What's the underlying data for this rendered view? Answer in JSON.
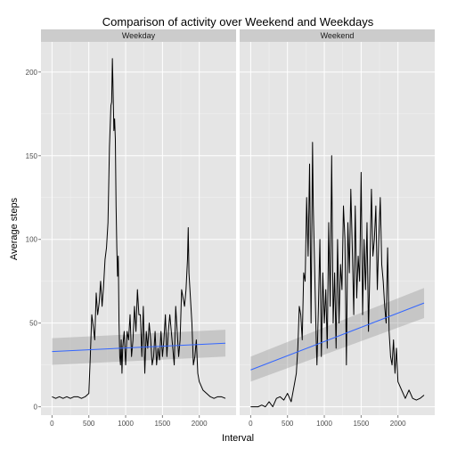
{
  "chart_data": {
    "type": "line",
    "title": "Comparison of activity over Weekend and Weekdays",
    "xlabel": "Interval",
    "ylabel": "Average steps",
    "xlim": [
      -150,
      2500
    ],
    "ylim": [
      -5,
      218
    ],
    "x_ticks": [
      0,
      500,
      1000,
      1500,
      2000
    ],
    "y_ticks": [
      0,
      50,
      100,
      150,
      200
    ],
    "grid": true,
    "facets": [
      {
        "name": "Weekday",
        "series": [
          {
            "x": [
              0,
              50,
              100,
              150,
              200,
              250,
              300,
              350,
              400,
              450,
              500,
              520,
              540,
              560,
              580,
              600,
              620,
              640,
              660,
              680,
              700,
              720,
              740,
              760,
              780,
              800,
              810,
              820,
              830,
              840,
              850,
              860,
              870,
              880,
              890,
              900,
              910,
              920,
              930,
              940,
              950,
              960,
              980,
              1000,
              1020,
              1040,
              1060,
              1080,
              1100,
              1120,
              1140,
              1160,
              1180,
              1200,
              1220,
              1240,
              1260,
              1280,
              1300,
              1320,
              1340,
              1360,
              1380,
              1400,
              1420,
              1440,
              1460,
              1480,
              1500,
              1520,
              1540,
              1560,
              1580,
              1600,
              1620,
              1640,
              1660,
              1680,
              1700,
              1720,
              1740,
              1760,
              1780,
              1800,
              1820,
              1840,
              1850,
              1860,
              1880,
              1900,
              1920,
              1940,
              1960,
              1980,
              2000,
              2050,
              2100,
              2150,
              2200,
              2250,
              2300,
              2355
            ],
            "y": [
              6,
              5,
              6,
              5,
              6,
              5,
              6,
              6,
              5,
              6,
              8,
              30,
              55,
              48,
              40,
              68,
              55,
              62,
              75,
              60,
              72,
              88,
              95,
              110,
              155,
              180,
              182,
              208,
              188,
              165,
              172,
              160,
              120,
              95,
              78,
              90,
              50,
              30,
              25,
              40,
              20,
              35,
              45,
              25,
              45,
              40,
              55,
              30,
              40,
              60,
              45,
              70,
              55,
              55,
              30,
              60,
              20,
              45,
              35,
              50,
              40,
              25,
              30,
              45,
              25,
              35,
              28,
              45,
              30,
              40,
              55,
              30,
              45,
              55,
              45,
              35,
              25,
              60,
              45,
              30,
              40,
              70,
              65,
              60,
              70,
              88,
              107,
              80,
              65,
              50,
              25,
              30,
              40,
              20,
              15,
              10,
              8,
              6,
              5,
              6,
              6,
              5
            ],
            "color": "#000000"
          },
          {
            "x": [
              0,
              2355
            ],
            "y": [
              33,
              38
            ],
            "ci_lower": [
              25,
              30
            ],
            "ci_upper": [
              41,
              46
            ],
            "color": "#3366FF"
          }
        ]
      },
      {
        "name": "Weekend",
        "series": [
          {
            "x": [
              0,
              50,
              100,
              150,
              200,
              250,
              300,
              350,
              400,
              450,
              500,
              550,
              600,
              620,
              640,
              660,
              680,
              700,
              720,
              740,
              760,
              780,
              800,
              820,
              840,
              850,
              860,
              870,
              880,
              890,
              900,
              920,
              940,
              960,
              980,
              1000,
              1020,
              1040,
              1060,
              1080,
              1100,
              1120,
              1140,
              1160,
              1180,
              1200,
              1220,
              1240,
              1260,
              1280,
              1300,
              1320,
              1340,
              1360,
              1380,
              1400,
              1420,
              1440,
              1460,
              1480,
              1500,
              1520,
              1540,
              1560,
              1580,
              1600,
              1620,
              1640,
              1660,
              1680,
              1700,
              1720,
              1740,
              1760,
              1780,
              1800,
              1820,
              1840,
              1860,
              1880,
              1900,
              1920,
              1940,
              1960,
              1980,
              2000,
              2050,
              2100,
              2150,
              2200,
              2250,
              2300,
              2355
            ],
            "y": [
              0,
              0,
              0,
              1,
              0,
              3,
              0,
              5,
              6,
              4,
              8,
              3,
              15,
              20,
              35,
              60,
              55,
              40,
              80,
              75,
              125,
              90,
              145,
              50,
              158,
              120,
              100,
              80,
              60,
              40,
              25,
              60,
              100,
              30,
              80,
              50,
              70,
              35,
              110,
              60,
              150,
              50,
              80,
              35,
              100,
              50,
              85,
              70,
              120,
              100,
              25,
              110,
              80,
              130,
              95,
              55,
              120,
              65,
              90,
              75,
              140,
              55,
              100,
              70,
              110,
              45,
              85,
              130,
              90,
              100,
              120,
              70,
              100,
              125,
              85,
              75,
              60,
              50,
              95,
              45,
              30,
              25,
              40,
              20,
              35,
              15,
              10,
              5,
              10,
              5,
              4,
              5,
              7
            ],
            "color": "#000000"
          },
          {
            "x": [
              0,
              2355
            ],
            "y": [
              22,
              62
            ],
            "ci_lower": [
              15,
              53
            ],
            "ci_upper": [
              30,
              71
            ],
            "color": "#3366FF"
          }
        ]
      }
    ]
  },
  "colors": {
    "panel_bg": "#E5E5E5",
    "strip_bg": "#CCCCCC",
    "grid_major": "#FFFFFF",
    "grid_minor": "#F2F2F2",
    "ci_fill": "#999999",
    "data_line": "#000000",
    "trend_line": "#3366FF"
  }
}
